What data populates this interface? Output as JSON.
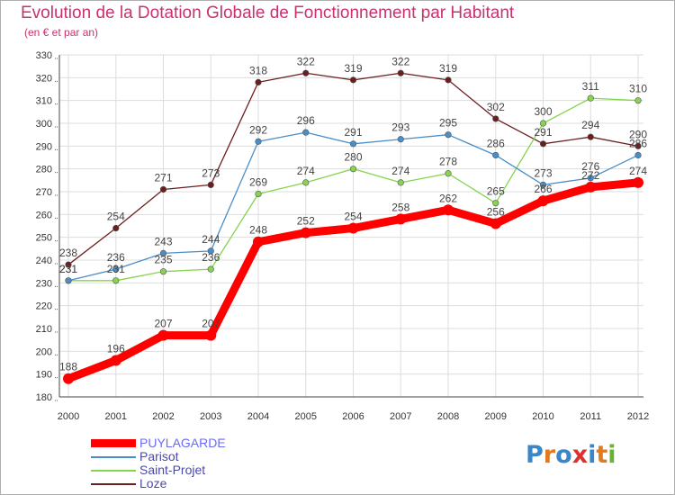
{
  "title": "Evolution de la Dotation Globale de Fonctionnement par Habitant",
  "subtitle": "(en € et par an)",
  "logo": {
    "letters": [
      "P",
      "r",
      "o",
      "x",
      "i",
      "t",
      "i"
    ],
    "colors": [
      "#3a86c8",
      "#e07b22",
      "#3a86c8",
      "#e0302e",
      "#3a86c8",
      "#e07b22",
      "#6bb132"
    ]
  },
  "chart_data": {
    "type": "line",
    "title": "Evolution de la Dotation Globale de Fonctionnement par Habitant",
    "subtitle": "(en € et par an)",
    "xlabel": "",
    "ylabel": "",
    "x": [
      "2000",
      "2001",
      "2002",
      "2003",
      "2004",
      "2005",
      "2006",
      "2007",
      "2008",
      "2009",
      "2010",
      "2011",
      "2012"
    ],
    "ylim": [
      180,
      330
    ],
    "yticks": [
      180,
      190,
      200,
      210,
      220,
      230,
      240,
      250,
      260,
      270,
      280,
      290,
      300,
      310,
      320,
      330
    ],
    "grid": true,
    "legend_position": "bottom-left",
    "series": [
      {
        "name": "Loze",
        "color": "#6b1e1e",
        "values": [
          238,
          254,
          271,
          273,
          318,
          322,
          319,
          322,
          319,
          302,
          291,
          294,
          290
        ]
      },
      {
        "name": "Saint-Projet",
        "color": "#86d44f",
        "values": [
          231,
          231,
          235,
          236,
          269,
          274,
          280,
          274,
          278,
          265,
          300,
          311,
          310
        ]
      },
      {
        "name": "Parisot",
        "color": "#4a8ec8",
        "values": [
          231,
          236,
          243,
          244,
          292,
          296,
          291,
          293,
          295,
          286,
          273,
          276,
          286
        ]
      },
      {
        "name": "PUYLAGARDE",
        "color": "#ff0000",
        "values": [
          188,
          196,
          207,
          207,
          248,
          252,
          254,
          258,
          262,
          256,
          266,
          272,
          274
        ]
      }
    ],
    "legend_order": [
      "PUYLAGARDE",
      "Parisot",
      "Saint-Projet",
      "Loze"
    ]
  }
}
